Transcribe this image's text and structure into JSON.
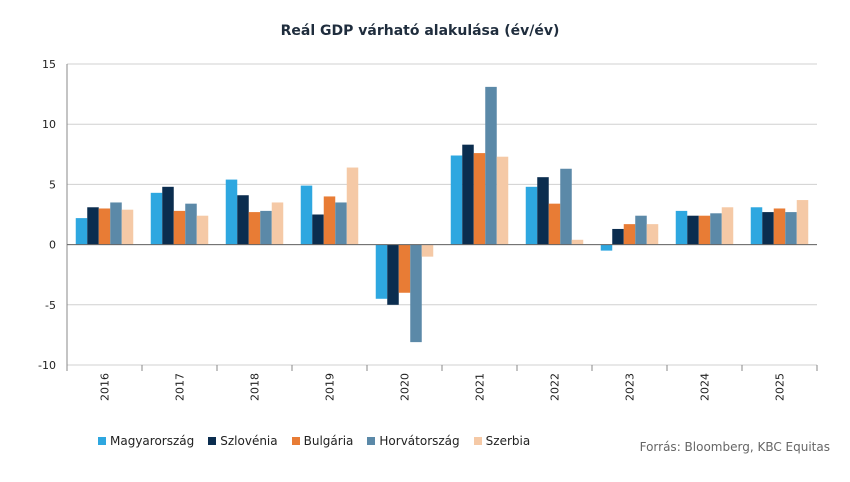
{
  "chart_data": {
    "type": "bar",
    "title": "Reál GDP várható alakulása (év/év)",
    "source": "Forrás: Bloomberg,  KBC Equitas",
    "categories": [
      "2016",
      "2017",
      "2018",
      "2019",
      "2020",
      "2021",
      "2022",
      "2023",
      "2024",
      "2025"
    ],
    "ylim": [
      -10,
      15
    ],
    "yticks": [
      -10,
      -5,
      0,
      5,
      10,
      15
    ],
    "grid": true,
    "legend_position": "bottom-left",
    "series": [
      {
        "name": "Magyarország",
        "color": "#2ea7e0",
        "values": [
          2.2,
          4.3,
          5.4,
          4.9,
          -4.5,
          7.4,
          4.8,
          -0.5,
          2.8,
          3.1
        ]
      },
      {
        "name": "Szlovénia",
        "color": "#0b2d4f",
        "values": [
          3.1,
          4.8,
          4.1,
          2.5,
          -5.0,
          8.3,
          5.6,
          1.3,
          2.4,
          2.7
        ]
      },
      {
        "name": "Bulgária",
        "color": "#e87c35",
        "values": [
          3.0,
          2.8,
          2.7,
          4.0,
          -4.0,
          7.6,
          3.4,
          1.7,
          2.4,
          3.0
        ]
      },
      {
        "name": "Horvátország",
        "color": "#5b89a8",
        "values": [
          3.5,
          3.4,
          2.8,
          3.5,
          -8.1,
          13.1,
          6.3,
          2.4,
          2.6,
          2.7
        ]
      },
      {
        "name": "Szerbia",
        "color": "#f5c9a6",
        "values": [
          2.9,
          2.4,
          3.5,
          6.4,
          -1.0,
          7.3,
          0.4,
          1.7,
          3.1,
          3.7
        ]
      }
    ]
  }
}
